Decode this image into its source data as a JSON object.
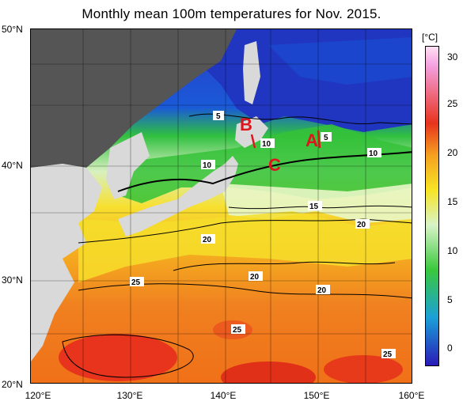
{
  "title": "Monthly mean 100m temperatures for Nov. 2015.",
  "axes": {
    "lat_labels": [
      "50°N",
      "40°N",
      "30°N",
      "20°N"
    ],
    "lon_labels": [
      "120°E",
      "130°E",
      "140°E",
      "150°E",
      "160°E"
    ]
  },
  "colorbar": {
    "unit": "[°C]",
    "ticks": [
      "30",
      "25",
      "20",
      "15",
      "10",
      "5",
      "0"
    ],
    "colors": {
      "c30": "#f4a0e0",
      "c25": "#e8331d",
      "c20": "#f7e424",
      "c15": "#d8f4c8",
      "c10": "#3ac83c",
      "c5": "#1aa0d8",
      "c0": "#2a1ab8"
    }
  },
  "markers": {
    "A": "A",
    "B": "B",
    "C": "C"
  },
  "contour_labels": {
    "l1": "5",
    "l2": "5",
    "l3": "10",
    "l4": "10",
    "l5": "10",
    "l6": "15",
    "l7": "20",
    "l8": "20",
    "l9": "20",
    "l10": "20",
    "l11": "25",
    "l12": "25",
    "l13": "25"
  },
  "map": {
    "land_color": "#d9d9d9",
    "no_data_color": "#555555"
  }
}
